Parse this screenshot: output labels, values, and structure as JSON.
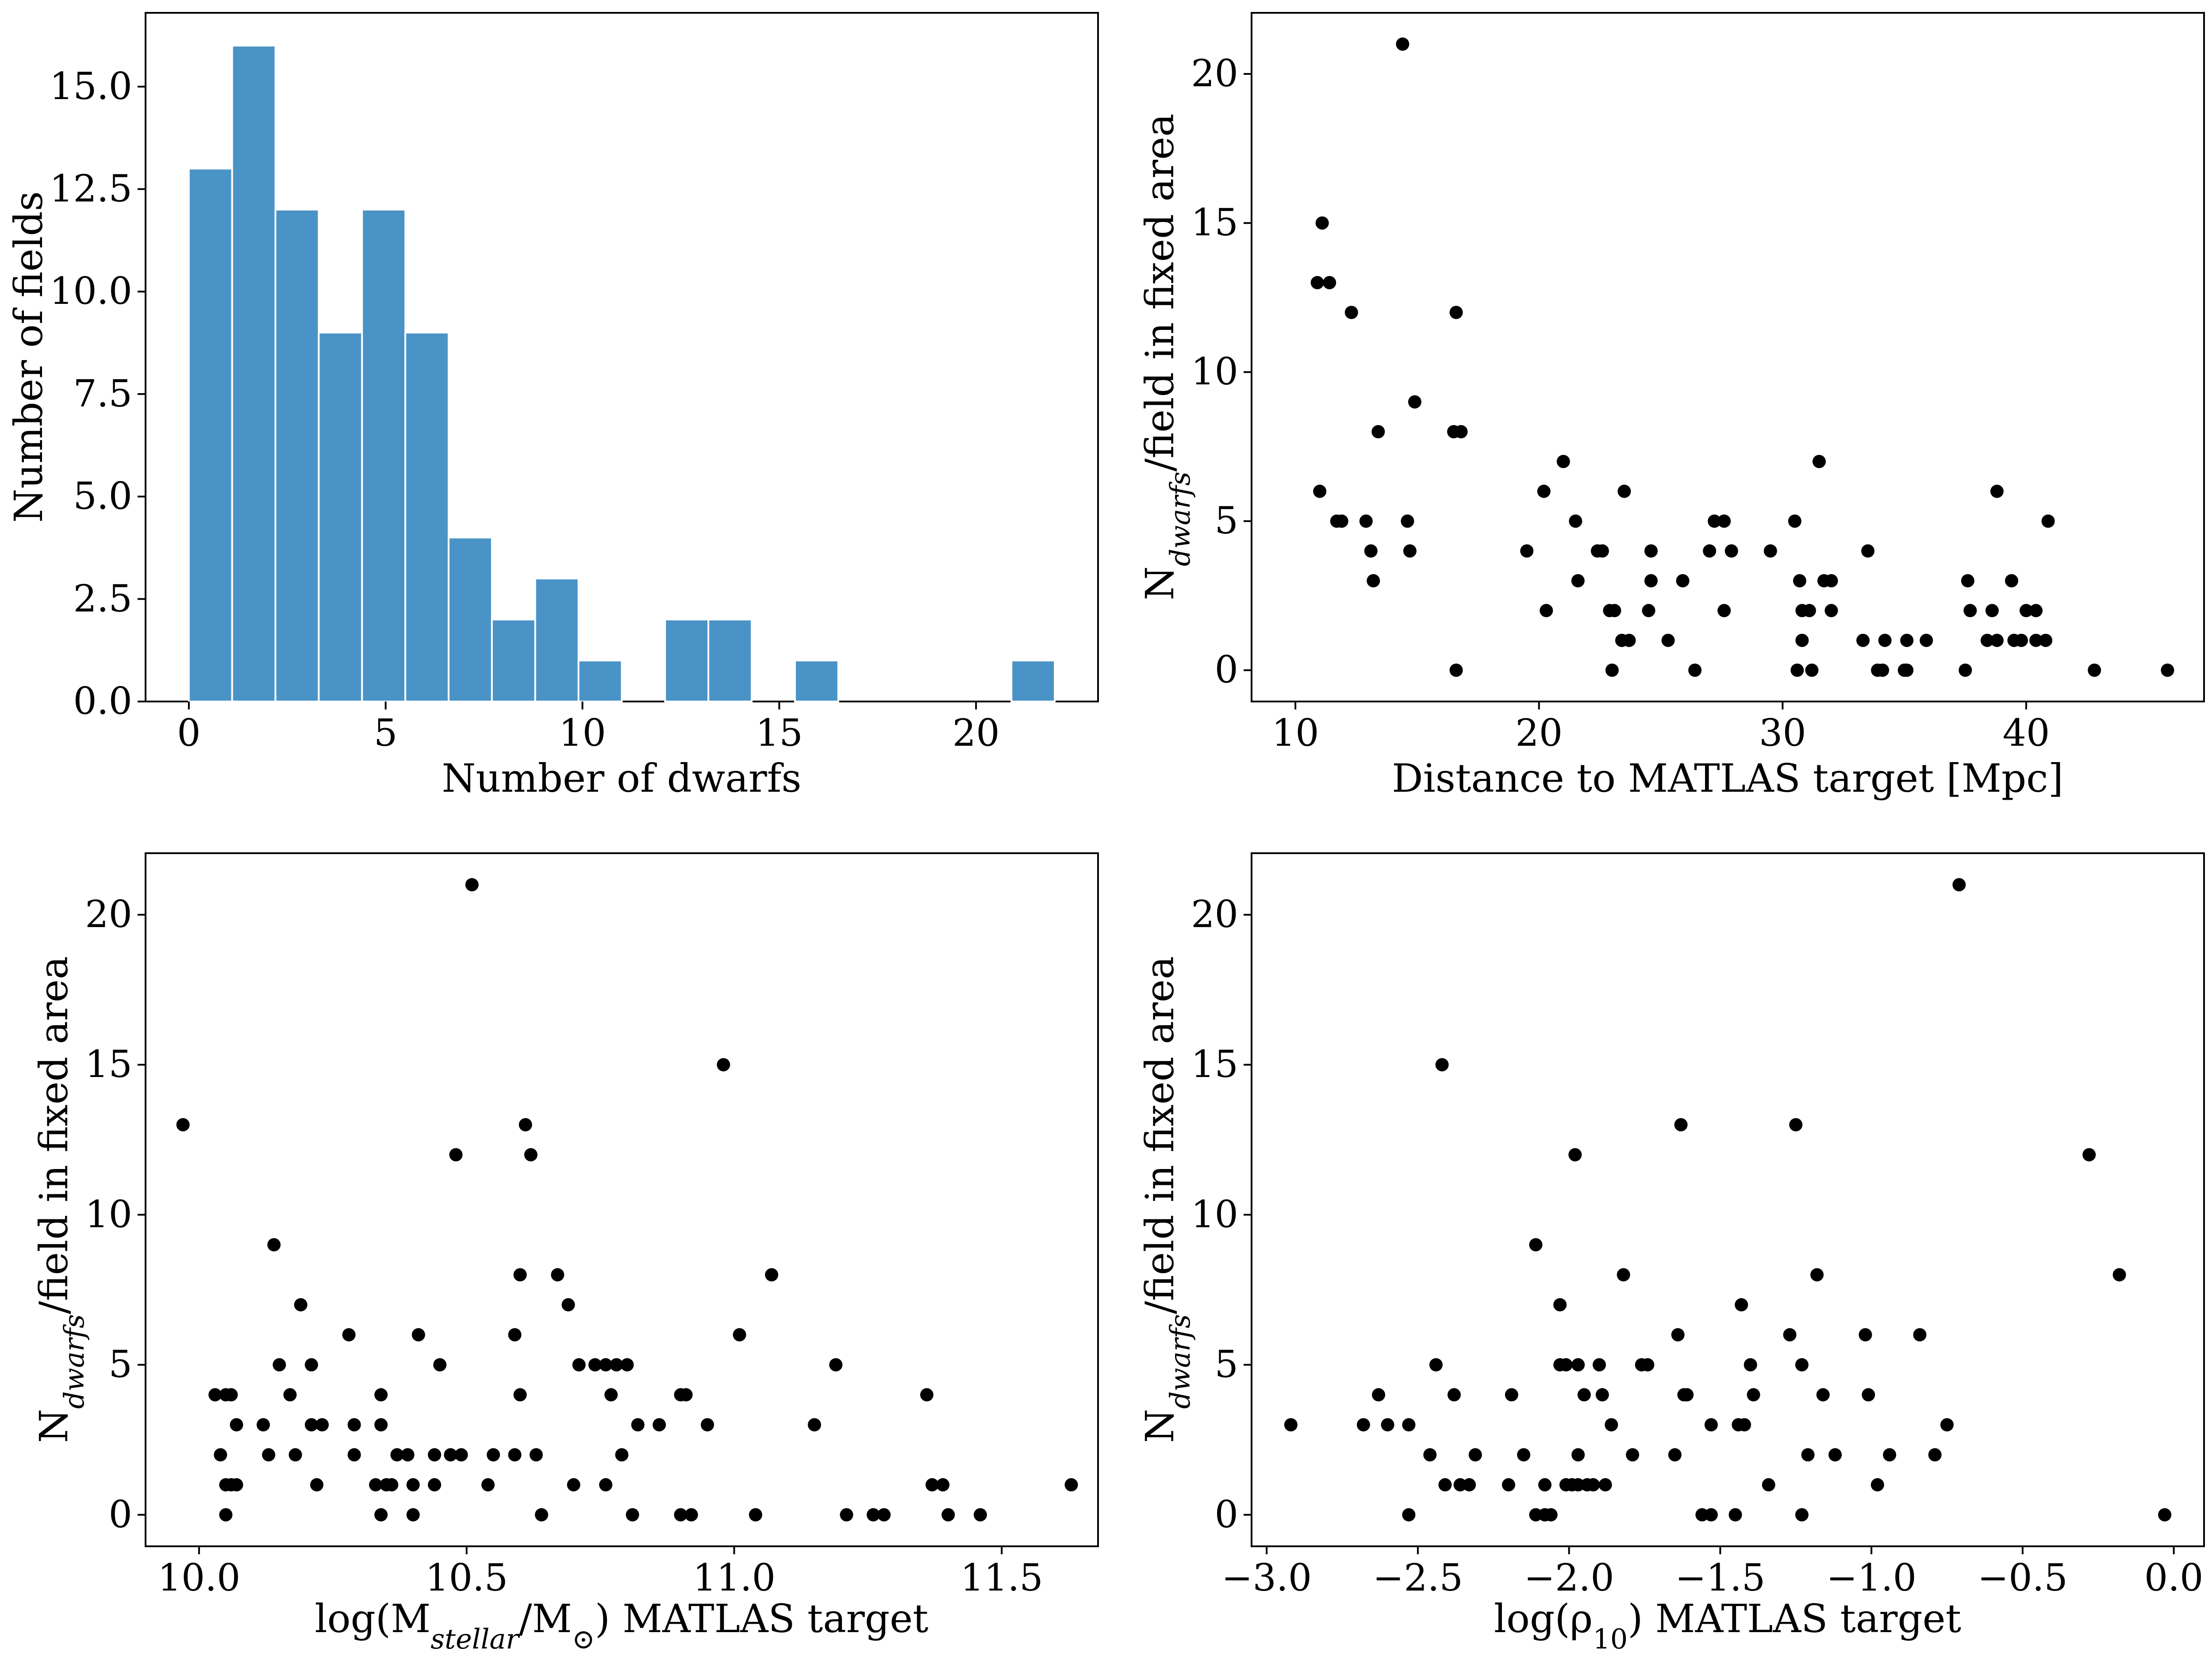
{
  "chart_data": [
    {
      "type": "bar",
      "name": "histogram-dwarfs",
      "xlabel": "Number of dwarfs",
      "ylabel": "Number of fields",
      "xlim": [
        -1.1,
        23.1
      ],
      "ylim": [
        0,
        16.8
      ],
      "xticks": [
        0,
        5,
        10,
        15,
        20
      ],
      "xtick_labels": [
        "0",
        "5",
        "10",
        "15",
        "20"
      ],
      "yticks": [
        0,
        2.5,
        5,
        7.5,
        10,
        12.5,
        15
      ],
      "ytick_labels": [
        "0.0",
        "2.5",
        "5.0",
        "7.5",
        "10.0",
        "12.5",
        "15.0"
      ],
      "bin_width": 1.1,
      "bin_starts": [
        0,
        1.1,
        2.2,
        3.3,
        4.4,
        5.5,
        6.6,
        7.7,
        8.8,
        9.9,
        11.0,
        12.1,
        13.2,
        14.3,
        15.4,
        16.5,
        17.6,
        18.7,
        19.8,
        20.9
      ],
      "values": [
        13,
        16,
        12,
        9,
        12,
        9,
        4,
        2,
        3,
        1,
        0,
        2,
        2,
        0,
        1,
        0,
        0,
        0,
        0,
        1
      ]
    },
    {
      "type": "scatter",
      "name": "scatter-distance",
      "xlabel": "Distance to MATLAS target [Mpc]",
      "ylabel": "N_{dwarfs}/field in fixed area",
      "xlim": [
        8.2,
        47.3
      ],
      "ylim": [
        -1.05,
        22.05
      ],
      "xticks": [
        10,
        20,
        30,
        40
      ],
      "xtick_labels": [
        "10",
        "20",
        "30",
        "40"
      ],
      "yticks": [
        0,
        5,
        10,
        15,
        20
      ],
      "ytick_labels": [
        "0",
        "5",
        "10",
        "15",
        "20"
      ],
      "x": [
        14.4,
        11.1,
        10.9,
        11.4,
        12.3,
        16.6,
        14.9,
        13.4,
        16.5,
        16.8,
        11.0,
        11.7,
        11.9,
        12.9,
        13.1,
        13.2,
        14.6,
        14.7,
        16.6,
        21.0,
        20.2,
        23.5,
        21.5,
        27.2,
        27.6,
        30.5,
        31.5,
        33.5,
        38.8,
        40.9,
        19.5,
        22.4,
        22.6,
        24.6,
        27.0,
        27.9,
        29.5,
        21.6,
        24.6,
        25.9,
        30.7,
        31.7,
        32.0,
        37.6,
        39.4,
        20.3,
        22.9,
        23.1,
        24.5,
        27.6,
        30.8,
        31.1,
        32.0,
        37.7,
        38.6,
        40.4,
        23.4,
        23.7,
        25.3,
        30.8,
        33.3,
        34.2,
        35.1,
        35.9,
        38.4,
        38.8,
        39.5,
        39.8,
        40.4,
        40.8,
        23.0,
        26.4,
        30.6,
        31.2,
        33.9,
        34.1,
        35.0,
        35.1,
        37.5,
        42.8,
        45.8,
        40.0
      ],
      "y": [
        21,
        15,
        13,
        13,
        12,
        12,
        9,
        8,
        8,
        8,
        6,
        5,
        5,
        5,
        4,
        3,
        5,
        4,
        0,
        7,
        6,
        6,
        5,
        5,
        5,
        5,
        7,
        4,
        6,
        5,
        4,
        4,
        4,
        4,
        4,
        4,
        4,
        3,
        3,
        3,
        3,
        3,
        3,
        3,
        3,
        2,
        2,
        2,
        2,
        2,
        2,
        2,
        2,
        2,
        2,
        2,
        1,
        1,
        1,
        1,
        1,
        1,
        1,
        1,
        1,
        1,
        1,
        1,
        1,
        1,
        0,
        0,
        0,
        0,
        0,
        0,
        0,
        0,
        0,
        0,
        0,
        2
      ]
    },
    {
      "type": "scatter",
      "name": "scatter-stellar-mass",
      "xlabel": "log(M_{stellar}/M_{⊙}) MATLAS target",
      "ylabel": "N_{dwarfs}/field in fixed area",
      "xlim": [
        9.9,
        11.68
      ],
      "ylim": [
        -1.05,
        22.05
      ],
      "xticks": [
        10.0,
        10.5,
        11.0,
        11.5
      ],
      "xtick_labels": [
        "10.0",
        "10.5",
        "11.0",
        "11.5"
      ],
      "yticks": [
        0,
        5,
        10,
        15,
        20
      ],
      "ytick_labels": [
        "0",
        "5",
        "10",
        "15",
        "20"
      ],
      "x": [
        10.51,
        10.98,
        9.97,
        10.61,
        10.62,
        10.48,
        10.14,
        10.67,
        10.69,
        11.07,
        10.19,
        10.6,
        10.59,
        10.41,
        10.28,
        11.01,
        10.15,
        10.21,
        10.45,
        10.71,
        10.74,
        10.76,
        10.78,
        10.8,
        11.19,
        10.03,
        10.05,
        10.06,
        10.17,
        10.34,
        10.6,
        10.77,
        10.9,
        10.91,
        11.36,
        10.07,
        10.12,
        10.21,
        10.23,
        10.29,
        10.34,
        10.82,
        10.86,
        10.95,
        11.15,
        10.04,
        10.13,
        10.18,
        10.29,
        10.37,
        10.39,
        10.44,
        10.47,
        10.49,
        10.55,
        10.59,
        10.63,
        10.79,
        10.05,
        10.06,
        10.07,
        10.22,
        10.33,
        10.35,
        10.36,
        10.4,
        10.44,
        10.54,
        10.7,
        10.76,
        11.37,
        11.39,
        11.63,
        10.05,
        10.34,
        10.4,
        10.64,
        10.81,
        10.9,
        10.92,
        11.04,
        11.21,
        11.26,
        11.28,
        11.4,
        11.46
      ],
      "y": [
        21,
        15,
        13,
        13,
        12,
        12,
        9,
        8,
        7,
        8,
        7,
        8,
        6,
        6,
        6,
        6,
        5,
        5,
        5,
        5,
        5,
        5,
        5,
        5,
        5,
        4,
        4,
        4,
        4,
        4,
        4,
        4,
        4,
        4,
        4,
        3,
        3,
        3,
        3,
        3,
        3,
        3,
        3,
        3,
        3,
        2,
        2,
        2,
        2,
        2,
        2,
        2,
        2,
        2,
        2,
        2,
        2,
        2,
        1,
        1,
        1,
        1,
        1,
        1,
        1,
        1,
        1,
        1,
        1,
        1,
        1,
        1,
        1,
        0,
        0,
        0,
        0,
        0,
        0,
        0,
        0,
        0,
        0,
        0,
        0,
        0
      ]
    },
    {
      "type": "scatter",
      "name": "scatter-density",
      "xlabel": "log(ρ_{10}) MATLAS target",
      "ylabel": "N_{dwarfs}/field in fixed area",
      "xlim": [
        -3.05,
        0.1
      ],
      "ylim": [
        -1.05,
        22.05
      ],
      "xticks": [
        -3.0,
        -2.5,
        -2.0,
        -1.5,
        -1.0,
        -0.5,
        0.0
      ],
      "xtick_labels": [
        "−3.0",
        "−2.5",
        "−2.0",
        "−1.5",
        "−1.0",
        "−0.5",
        "0.0"
      ],
      "yticks": [
        0,
        5,
        10,
        15,
        20
      ],
      "ytick_labels": [
        "0",
        "5",
        "10",
        "15",
        "20"
      ],
      "x": [
        -0.71,
        -2.42,
        -1.63,
        -1.25,
        -1.98,
        -0.28,
        -2.11,
        -1.82,
        -1.18,
        -0.18,
        -2.03,
        -1.43,
        -1.64,
        -1.27,
        -1.02,
        -0.84,
        -2.44,
        -2.03,
        -2.01,
        -1.97,
        -1.9,
        -1.76,
        -1.74,
        -1.4,
        -1.23,
        -2.63,
        -2.38,
        -2.19,
        -1.95,
        -1.89,
        -1.62,
        -1.61,
        -1.39,
        -1.16,
        -1.01,
        -2.92,
        -2.68,
        -2.6,
        -2.53,
        -1.86,
        -1.53,
        -1.44,
        -1.42,
        -0.75,
        -2.46,
        -2.31,
        -2.15,
        -1.97,
        -1.79,
        -1.65,
        -1.21,
        -1.12,
        -0.94,
        -0.79,
        -2.41,
        -2.36,
        -2.33,
        -2.2,
        -2.08,
        -2.01,
        -1.99,
        -1.97,
        -1.94,
        -1.92,
        -1.88,
        -1.34,
        -0.98,
        -2.53,
        -2.11,
        -2.08,
        -2.06,
        -1.56,
        -1.53,
        -1.45,
        -1.23,
        -0.03
      ],
      "y": [
        21,
        15,
        13,
        13,
        12,
        12,
        9,
        8,
        8,
        8,
        7,
        7,
        6,
        6,
        6,
        6,
        5,
        5,
        5,
        5,
        5,
        5,
        5,
        5,
        5,
        4,
        4,
        4,
        4,
        4,
        4,
        4,
        4,
        4,
        4,
        3,
        3,
        3,
        3,
        3,
        3,
        3,
        3,
        3,
        2,
        2,
        2,
        2,
        2,
        2,
        2,
        2,
        2,
        2,
        1,
        1,
        1,
        1,
        1,
        1,
        1,
        1,
        1,
        1,
        1,
        1,
        1,
        0,
        0,
        0,
        0,
        0,
        0,
        0,
        0,
        0
      ]
    }
  ]
}
